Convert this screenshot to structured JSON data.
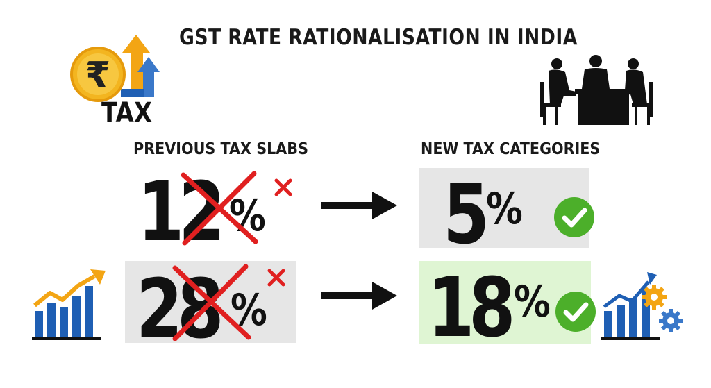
{
  "title": "GST RATE RATIONALISATION IN INDIA",
  "logo": {
    "text": "TAX",
    "icon": "rupee-coin-icon"
  },
  "headings": {
    "previous": "PREVIOUS TAX SLABS",
    "new": "NEW TAX CATEGORIES"
  },
  "rows": [
    {
      "old_number": "12",
      "old_symbol": "%",
      "new_number": "5",
      "new_symbol": "%"
    },
    {
      "old_number": "28",
      "old_symbol": "%",
      "new_number": "18",
      "new_symbol": "%"
    }
  ],
  "colors": {
    "cross": "#e02020",
    "check": "#4caf2a",
    "new_highlight": "#dff5d3",
    "box_gray": "#e6e6e6",
    "chart_blue": "#1f5fb4",
    "chart_orange": "#f3a514"
  },
  "icons": [
    "rupee-coin-icon",
    "up-arrow-icon",
    "meeting-people-icon",
    "bar-chart-icon",
    "gear-chart-icon",
    "red-cross-icon",
    "green-check-icon",
    "right-arrow-icon"
  ]
}
